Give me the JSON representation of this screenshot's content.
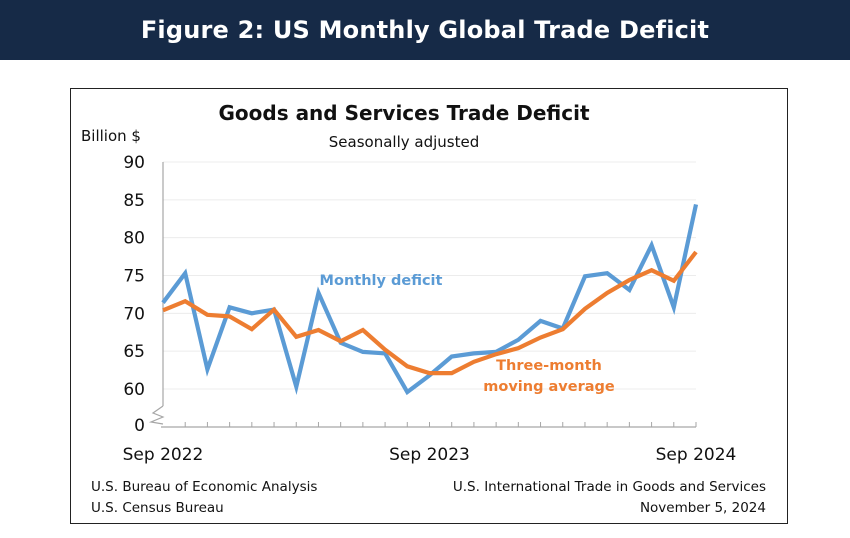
{
  "header": {
    "title": "Figure 2: US Monthly Global Trade Deficit"
  },
  "colors": {
    "banner": "#162a47",
    "monthly": "#5b9bd5",
    "average": "#ed7d31",
    "grid": "#ececec",
    "axis": "#a6a6a6"
  },
  "chart_data": {
    "type": "line",
    "title": "Goods and Services Trade Deficit",
    "subtitle": "Seasonally adjusted",
    "ylabel": "Billion $",
    "xlabel": "",
    "ylim": [
      60,
      90
    ],
    "axis_break": true,
    "y_ticks": [
      0,
      60,
      65,
      70,
      75,
      80,
      85,
      90
    ],
    "y_tick_labels": [
      "0",
      "60",
      "65",
      "70",
      "75",
      "80",
      "85",
      "90"
    ],
    "x_tick_labels": [
      {
        "index": 0,
        "label": "Sep 2022"
      },
      {
        "index": 12,
        "label": "Sep 2023"
      },
      {
        "index": 24,
        "label": "Sep 2024"
      }
    ],
    "grid": true,
    "legend": "inline annotations",
    "x": [
      "Sep 2022",
      "Oct 2022",
      "Nov 2022",
      "Dec 2022",
      "Jan 2023",
      "Feb 2023",
      "Mar 2023",
      "Apr 2023",
      "May 2023",
      "Jun 2023",
      "Jul 2023",
      "Aug 2023",
      "Sep 2023",
      "Oct 2023",
      "Nov 2023",
      "Dec 2023",
      "Jan 2024",
      "Feb 2024",
      "Mar 2024",
      "Apr 2024",
      "May 2024",
      "Jun 2024",
      "Jul 2024",
      "Aug 2024",
      "Sep 2024"
    ],
    "series": [
      {
        "name": "Monthly deficit",
        "color": "#5b9bd5",
        "values": [
          71.4,
          75.3,
          62.6,
          70.8,
          70.0,
          70.5,
          60.3,
          72.7,
          66.1,
          64.9,
          64.7,
          59.6,
          61.8,
          64.3,
          64.7,
          64.9,
          66.5,
          69.0,
          68.0,
          74.9,
          75.3,
          73.1,
          79.0,
          70.8,
          84.4
        ]
      },
      {
        "name": "Three-month moving average",
        "color": "#ed7d31",
        "values": [
          70.4,
          71.6,
          69.8,
          69.6,
          67.9,
          70.5,
          66.9,
          67.8,
          66.3,
          67.8,
          65.2,
          63.0,
          62.1,
          62.1,
          63.6,
          64.6,
          65.4,
          66.8,
          67.9,
          70.6,
          72.7,
          74.4,
          75.7,
          74.3,
          78.1
        ]
      }
    ],
    "annotations": [
      {
        "text": "Monthly deficit",
        "series": "Monthly deficit"
      },
      {
        "text_lines": [
          "Three-month",
          "moving average"
        ],
        "series": "Three-month moving average"
      }
    ]
  },
  "footer": {
    "source_left_1": "U.S. Bureau of Economic Analysis",
    "source_left_2": "U.S. Census Bureau",
    "source_right_1": "U.S. International Trade in Goods and Services",
    "source_right_2": "November 5, 2024"
  }
}
